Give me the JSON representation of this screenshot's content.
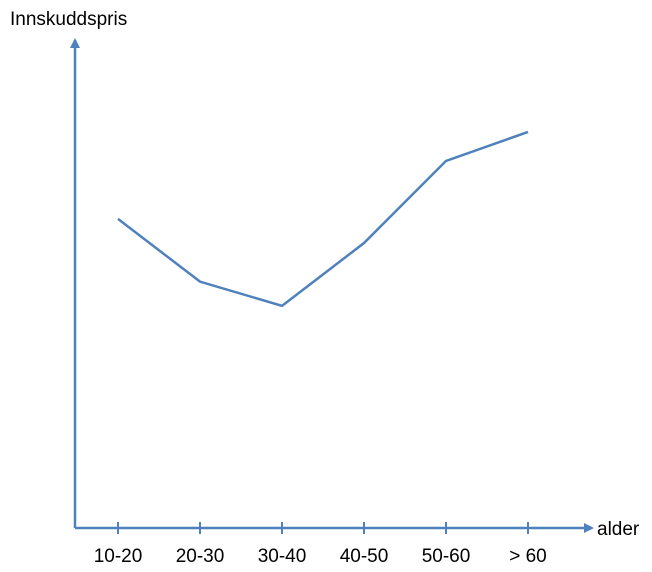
{
  "chart_data": {
    "type": "line",
    "y_label": "Innskuddspris",
    "x_label": "alder",
    "categories": [
      "10-20",
      "20-30",
      "30-40",
      "40-50",
      "50-60",
      "> 60"
    ],
    "values": [
      64,
      51,
      46,
      59,
      76,
      82
    ],
    "color": "#4f81bd",
    "ylim": [
      0,
      100
    ]
  }
}
